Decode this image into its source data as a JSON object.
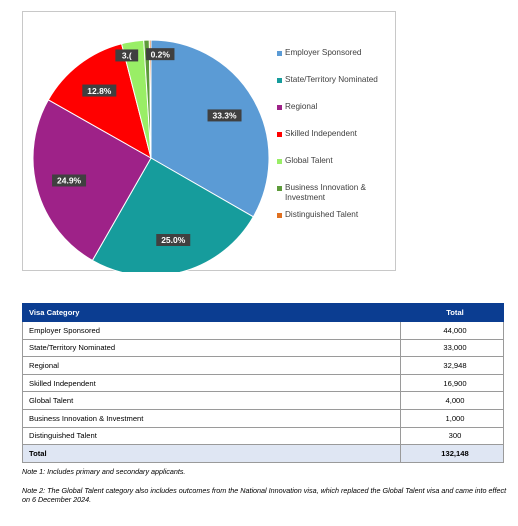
{
  "chart_data": {
    "type": "pie",
    "slices": [
      {
        "label": "Employer Sponsored",
        "value": 44000,
        "pct_label": "33.3%",
        "color": "#5b9bd5"
      },
      {
        "label": "State/Territory Nominated",
        "value": 33000,
        "pct_label": "25.0%",
        "color": "#169c9c"
      },
      {
        "label": "Regional",
        "value": 32948,
        "pct_label": "24.9%",
        "color": "#9e2288"
      },
      {
        "label": "Skilled Independent",
        "value": 16900,
        "pct_label": "12.8%",
        "color": "#ff0000"
      },
      {
        "label": "Global Talent",
        "value": 4000,
        "pct_label": "3.0%",
        "color": "#99ee66"
      },
      {
        "label": "Business Innovation & Investment",
        "value": 1000,
        "pct_label": "0.8%",
        "color": "#5d9b3a"
      },
      {
        "label": "Distinguished Talent",
        "value": 300,
        "pct_label": "0.2%",
        "color": "#e07020"
      }
    ],
    "visible_labels": [
      "33.3%",
      "25.0%",
      "24.9%",
      "12.8%",
      "3.(",
      "0.2%"
    ],
    "legend_position": "right"
  },
  "table": {
    "headers": [
      "Visa Category",
      "Total"
    ],
    "rows": [
      [
        "Employer Sponsored",
        "44,000"
      ],
      [
        "State/Territory Nominated",
        "33,000"
      ],
      [
        "Regional",
        "32,948"
      ],
      [
        "Skilled Independent",
        "16,900"
      ],
      [
        "Global Talent",
        "4,000"
      ],
      [
        "Business Innovation & Investment",
        "1,000"
      ],
      [
        "Distinguished Talent",
        "300"
      ]
    ],
    "total": [
      "Total",
      "132,148"
    ]
  },
  "notes": [
    "Note 1: Includes primary and secondary applicants.",
    "Note 2: The Global Talent category also includes outcomes from the National Innovation visa, which replaced the Global Talent visa and came into effect on 6 December 2024."
  ]
}
